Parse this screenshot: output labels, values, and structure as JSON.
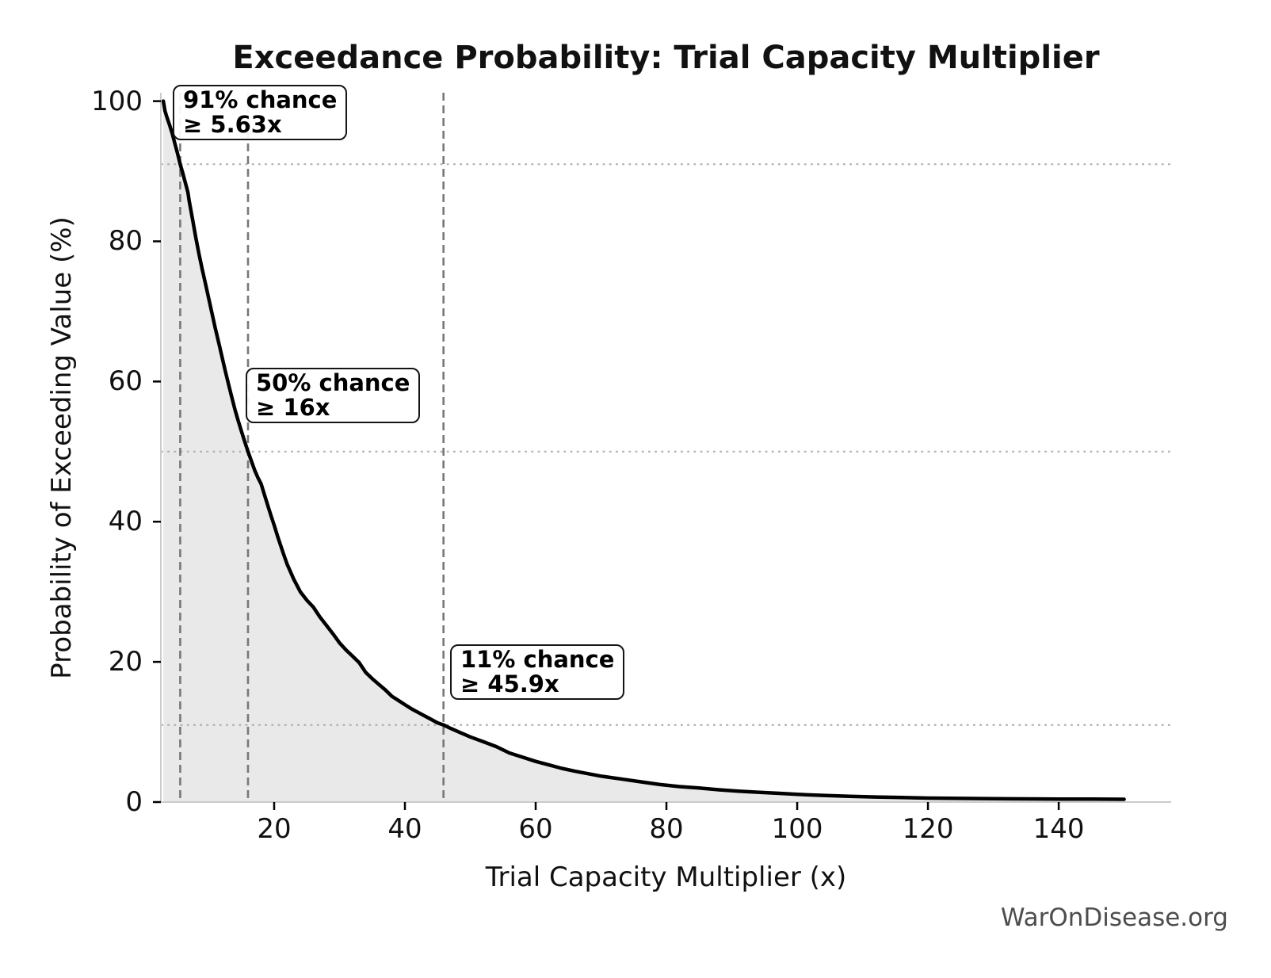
{
  "watermark": "WarOnDisease.org",
  "chart_data": {
    "type": "area",
    "title": "Exceedance Probability: Trial Capacity Multiplier",
    "xlabel": "Trial Capacity Multiplier (x)",
    "ylabel": "Probability of Exceeding Value (%)",
    "xlim": [
      2.67,
      157.2
    ],
    "ylim": [
      0,
      101.2
    ],
    "xticks": [
      20,
      40,
      60,
      80,
      100,
      120,
      140
    ],
    "yticks": [
      0,
      20,
      40,
      60,
      80,
      100
    ],
    "legend": "none",
    "grid": "dotted horizontal reference lines at annotated probabilities; dashed vertical lines at annotated multipliers",
    "colors": {
      "curve": "#000000",
      "area_fill": "#e9e9e9",
      "dashed_vline": "#787878",
      "dotted_hline": "#b0b0b0",
      "spine": "#cbcbcb",
      "tick": "#000000",
      "watermark_text": "#4d4d4d"
    },
    "annotations": [
      {
        "line1": "91% chance",
        "line2": "≥ 5.63x",
        "x": 5.63,
        "probability": 91
      },
      {
        "line1": "50% chance",
        "line2": "≥ 16x",
        "x": 16,
        "probability": 50
      },
      {
        "line1": "11% chance",
        "line2": "≥ 45.9x",
        "x": 45.9,
        "probability": 11
      }
    ],
    "series": [
      {
        "name": "exceedance-curve",
        "points": [
          [
            3.05,
            100
          ],
          [
            3.3,
            98.6
          ],
          [
            3.6,
            97.7
          ],
          [
            4.0,
            96.6
          ],
          [
            4.4,
            95.4
          ],
          [
            4.8,
            94.0
          ],
          [
            5.2,
            92.6
          ],
          [
            5.63,
            91.0
          ],
          [
            6.0,
            89.8
          ],
          [
            6.4,
            88.4
          ],
          [
            6.8,
            87.0
          ],
          [
            7.0,
            85.8
          ],
          [
            7.5,
            83.2
          ],
          [
            8.0,
            80.6
          ],
          [
            8.5,
            78.2
          ],
          [
            9.0,
            76.0
          ],
          [
            9.5,
            73.9
          ],
          [
            10,
            71.8
          ],
          [
            10.5,
            69.7
          ],
          [
            11,
            67.6
          ],
          [
            11.5,
            65.6
          ],
          [
            12,
            63.6
          ],
          [
            12.5,
            61.6
          ],
          [
            13,
            59.7
          ],
          [
            13.5,
            57.8
          ],
          [
            14,
            56.0
          ],
          [
            14.5,
            54.4
          ],
          [
            15,
            52.9
          ],
          [
            15.5,
            51.4
          ],
          [
            16,
            50.0
          ],
          [
            16.5,
            48.7
          ],
          [
            17,
            47.4
          ],
          [
            17.5,
            46.3
          ],
          [
            18,
            45.4
          ],
          [
            18.5,
            43.9
          ],
          [
            19,
            42.4
          ],
          [
            19.5,
            40.9
          ],
          [
            20,
            39.5
          ],
          [
            20.5,
            38.0
          ],
          [
            21,
            36.6
          ],
          [
            21.5,
            35.2
          ],
          [
            22,
            33.9
          ],
          [
            23,
            31.8
          ],
          [
            24,
            30.0
          ],
          [
            25,
            28.8
          ],
          [
            26,
            27.8
          ],
          [
            27,
            26.4
          ],
          [
            28,
            25.2
          ],
          [
            29,
            24.0
          ],
          [
            30,
            22.7
          ],
          [
            31,
            21.7
          ],
          [
            32,
            20.8
          ],
          [
            33,
            19.9
          ],
          [
            34,
            18.5
          ],
          [
            35,
            17.6
          ],
          [
            36,
            16.8
          ],
          [
            37,
            16.0
          ],
          [
            38,
            15.1
          ],
          [
            39,
            14.5
          ],
          [
            40,
            13.9
          ],
          [
            41,
            13.3
          ],
          [
            42,
            12.8
          ],
          [
            43,
            12.3
          ],
          [
            44,
            11.8
          ],
          [
            45,
            11.3
          ],
          [
            45.9,
            11.0
          ],
          [
            47,
            10.5
          ],
          [
            48,
            10.1
          ],
          [
            50,
            9.3
          ],
          [
            52,
            8.6
          ],
          [
            54,
            7.9
          ],
          [
            56,
            7.0
          ],
          [
            58,
            6.4
          ],
          [
            60,
            5.8
          ],
          [
            62,
            5.3
          ],
          [
            64,
            4.8
          ],
          [
            66,
            4.4
          ],
          [
            68,
            4.05
          ],
          [
            70,
            3.7
          ],
          [
            73,
            3.3
          ],
          [
            76,
            2.9
          ],
          [
            79,
            2.5
          ],
          [
            82,
            2.2
          ],
          [
            85,
            2.0
          ],
          [
            88,
            1.75
          ],
          [
            91,
            1.55
          ],
          [
            94,
            1.4
          ],
          [
            97,
            1.25
          ],
          [
            100,
            1.1
          ],
          [
            104,
            0.95
          ],
          [
            108,
            0.82
          ],
          [
            112,
            0.72
          ],
          [
            116,
            0.64
          ],
          [
            120,
            0.57
          ],
          [
            125,
            0.52
          ],
          [
            130,
            0.48
          ],
          [
            135,
            0.45
          ],
          [
            140,
            0.43
          ],
          [
            145,
            0.42
          ],
          [
            150,
            0.4
          ]
        ]
      }
    ]
  }
}
